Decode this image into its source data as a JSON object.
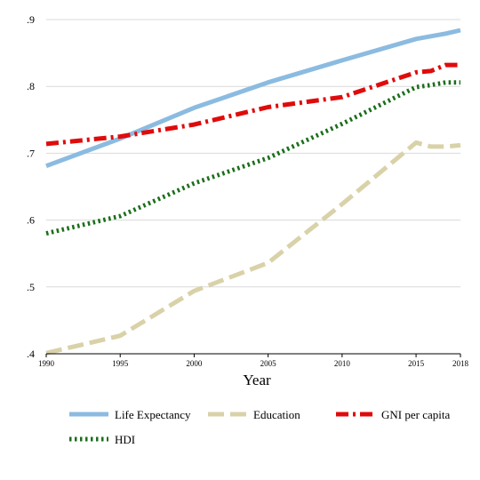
{
  "chart_data": {
    "type": "line",
    "xlabel": "Year",
    "ylabel": "",
    "title": "",
    "xlim": [
      1990,
      2018
    ],
    "ylim": [
      0.4,
      0.9
    ],
    "x_ticks": [
      1990,
      1995,
      2000,
      2005,
      2010,
      2015,
      2018
    ],
    "y_ticks": [
      0.4,
      0.5,
      0.6,
      0.7,
      0.8,
      0.9
    ],
    "y_tick_labels": [
      ".4",
      ".5",
      ".6",
      ".7",
      ".8",
      ".9"
    ],
    "grid": "horizontal",
    "legend_position": "bottom",
    "x": [
      1990,
      1995,
      2000,
      2005,
      2010,
      2015,
      2016,
      2017,
      2018
    ],
    "series": [
      {
        "name": "Life Expectancy",
        "color": "#8bbbe0",
        "style": "solid",
        "values": [
          0.681,
          0.722,
          0.768,
          0.806,
          0.839,
          0.871,
          0.875,
          0.879,
          0.884
        ]
      },
      {
        "name": "Education",
        "color": "#d9d2a8",
        "style": "dash",
        "values": [
          0.401,
          0.427,
          0.494,
          0.536,
          0.624,
          0.716,
          0.71,
          0.71,
          0.712
        ]
      },
      {
        "name": "GNI per capita",
        "color": "#e00b0b",
        "style": "dashdot",
        "values": [
          0.714,
          0.725,
          0.743,
          0.769,
          0.784,
          0.821,
          0.823,
          0.832,
          0.832
        ]
      },
      {
        "name": "HDI",
        "color": "#1b6e1b",
        "style": "dot",
        "values": [
          0.58,
          0.606,
          0.655,
          0.693,
          0.744,
          0.799,
          0.802,
          0.806,
          0.806
        ]
      }
    ]
  }
}
